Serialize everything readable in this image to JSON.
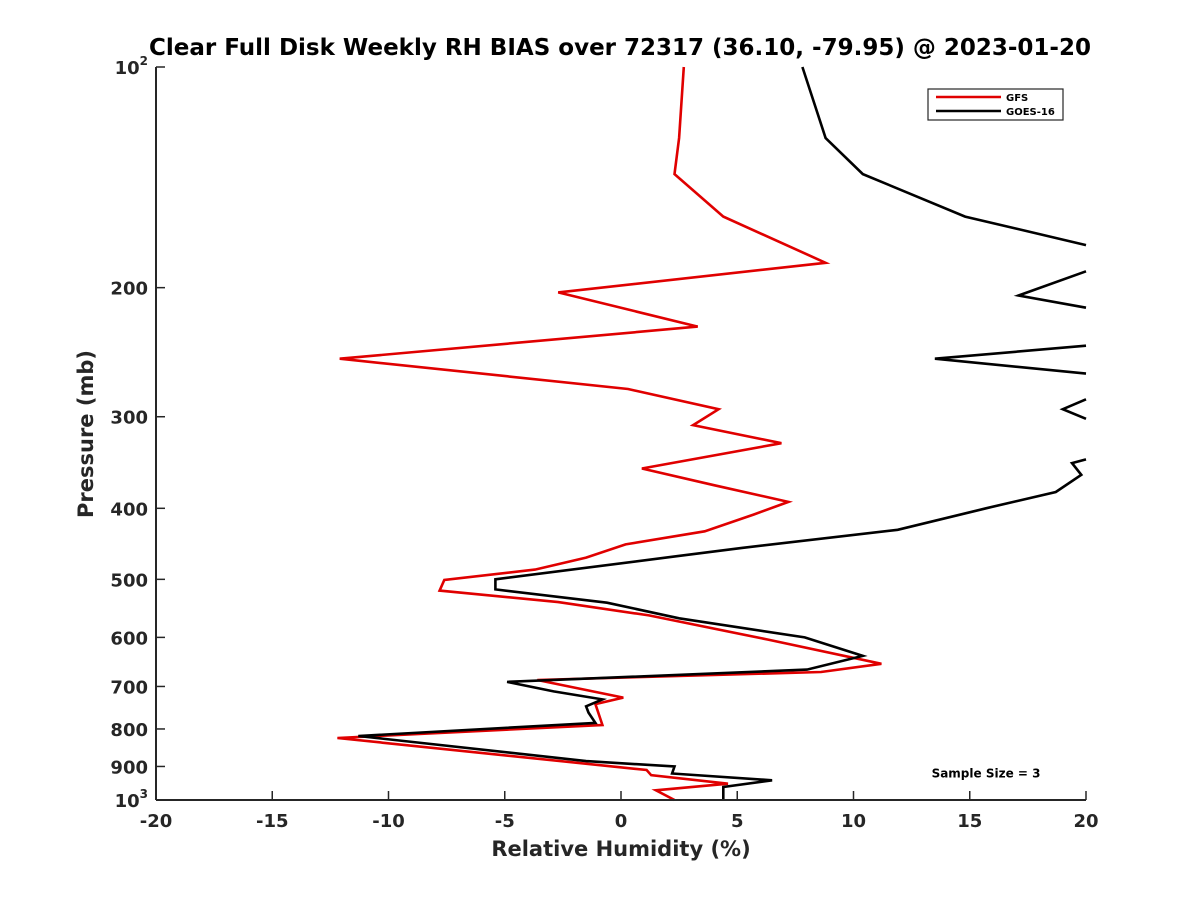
{
  "chart_data": {
    "type": "line",
    "title": "Clear Full Disk Weekly RH BIAS over 72317 (36.10, -79.95) @ 2023-01-20",
    "xlabel": "Relative Humidity (%)",
    "ylabel": "Pressure (mb)",
    "xlim": [
      -20,
      20
    ],
    "ylim": [
      100,
      1000
    ],
    "y_scale": "log",
    "y_reversed": true,
    "grid": false,
    "legend_position": "top-right",
    "x_ticks": [
      "-20",
      "-15",
      "-10",
      "-5",
      "0",
      "5",
      "10",
      "15",
      "20"
    ],
    "y_ticks": [
      {
        "value": 100,
        "base": "10",
        "exp": "2"
      },
      {
        "value": 200,
        "label": "200"
      },
      {
        "value": 300,
        "label": "300"
      },
      {
        "value": 400,
        "label": "400"
      },
      {
        "value": 500,
        "label": "500"
      },
      {
        "value": 600,
        "label": "600"
      },
      {
        "value": 700,
        "label": "700"
      },
      {
        "value": 800,
        "label": "800"
      },
      {
        "value": 900,
        "label": "900"
      },
      {
        "value": 1000,
        "base": "10",
        "exp": "3"
      }
    ],
    "series": [
      {
        "name": "GFS",
        "color": "#e00000",
        "points": [
          [
            2.7,
            100
          ],
          [
            2.5,
            125
          ],
          [
            2.3,
            140
          ],
          [
            4.4,
            160
          ],
          [
            8.8,
            185
          ],
          [
            -2.7,
            203
          ],
          [
            3.3,
            226
          ],
          [
            -12.1,
            250
          ],
          [
            0.3,
            275
          ],
          [
            4.2,
            293
          ],
          [
            3.1,
            308
          ],
          [
            6.9,
            326
          ],
          [
            0.9,
            353
          ],
          [
            4.0,
            372
          ],
          [
            7.2,
            392
          ],
          [
            5.7,
            408
          ],
          [
            3.6,
            430
          ],
          [
            0.2,
            448
          ],
          [
            -1.5,
            467
          ],
          [
            -3.7,
            485
          ],
          [
            -7.6,
            501
          ],
          [
            -7.8,
            518
          ],
          [
            -2.7,
            537
          ],
          [
            1.2,
            560
          ],
          [
            6.3,
            604
          ],
          [
            11.2,
            652
          ],
          [
            8.6,
            669
          ],
          [
            -3.6,
            686
          ],
          [
            0.1,
            725
          ],
          [
            -1.1,
            740
          ],
          [
            -0.8,
            790
          ],
          [
            -12.2,
            823
          ],
          [
            1.1,
            910
          ],
          [
            1.3,
            925
          ],
          [
            4.6,
            950
          ],
          [
            1.5,
            970
          ],
          [
            2.3,
            1000
          ]
        ]
      },
      {
        "name": "GOES-16",
        "color": "#000000",
        "points": [
          [
            7.8,
            100
          ],
          [
            8.8,
            125
          ],
          [
            10.4,
            140
          ],
          [
            14.8,
            160
          ],
          [
            20,
            175
          ],
          [
            null,
            null
          ],
          [
            20,
            190
          ],
          [
            17.1,
            205
          ],
          [
            20,
            213
          ],
          [
            null,
            null
          ],
          [
            20,
            240
          ],
          [
            13.5,
            250
          ],
          [
            20,
            262
          ],
          [
            null,
            null
          ],
          [
            20,
            284
          ],
          [
            19,
            293
          ],
          [
            20,
            302
          ],
          [
            null,
            null
          ],
          [
            20,
            343
          ],
          [
            19.4,
            347
          ],
          [
            19.8,
            360
          ],
          [
            18.7,
            380
          ],
          [
            15.7,
            400
          ],
          [
            11.9,
            428
          ],
          [
            5.2,
            453
          ],
          [
            2.4,
            465
          ],
          [
            -5.4,
            500
          ],
          [
            -5.4,
            516
          ],
          [
            -0.6,
            538
          ],
          [
            2.5,
            565
          ],
          [
            7.9,
            600
          ],
          [
            10.4,
            636
          ],
          [
            8.0,
            664
          ],
          [
            -4.9,
            690
          ],
          [
            -2.9,
            711
          ],
          [
            -0.8,
            729
          ],
          [
            -1.5,
            745
          ],
          [
            -1.4,
            760
          ],
          [
            -1.1,
            785
          ],
          [
            -11.3,
            818
          ],
          [
            -1.5,
            885
          ],
          [
            2.3,
            900
          ],
          [
            2.2,
            920
          ],
          [
            6.5,
            940
          ],
          [
            4.4,
            960
          ],
          [
            4.4,
            1000
          ]
        ]
      }
    ],
    "annotations": [
      {
        "text": "Sample Size = 3",
        "x": 15.7,
        "y": 920
      }
    ]
  }
}
